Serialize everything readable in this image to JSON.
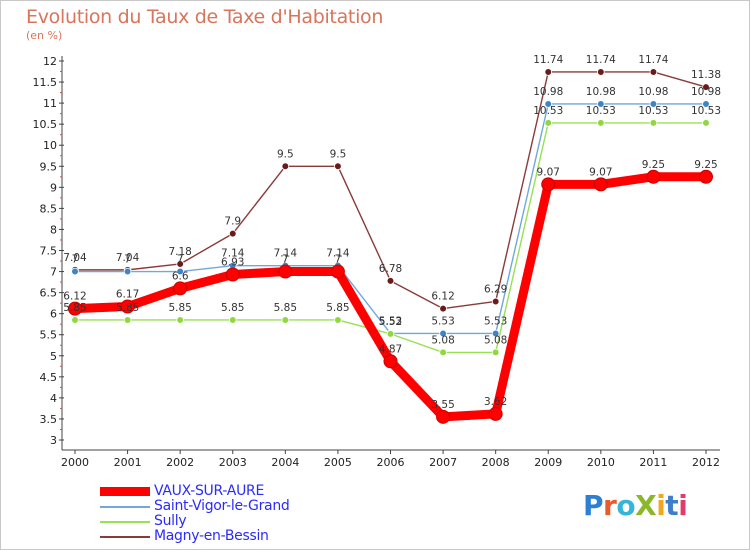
{
  "header": {
    "title": "Evolution du Taux de Taxe d'Habitation",
    "subtitle": "(en %)"
  },
  "logo": {
    "text": "ProXiti"
  },
  "chart_data": {
    "type": "line",
    "title": "Evolution du Taux de Taxe d'Habitation",
    "subtitle": "(en %)",
    "xlabel": "",
    "ylabel": "",
    "x": [
      "2000",
      "2001",
      "2002",
      "2003",
      "2004",
      "2005",
      "2006",
      "2007",
      "2008",
      "2009",
      "2010",
      "2011",
      "2012"
    ],
    "ylim": [
      3,
      12
    ],
    "yticks": [
      "3",
      "3.5",
      "4",
      "4.5",
      "5",
      "5.5",
      "6",
      "6.5",
      "7",
      "7.5",
      "8",
      "8.5",
      "9",
      "9.5",
      "10",
      "10.5",
      "11",
      "11.5",
      "12"
    ],
    "grid": false,
    "legend_position": "bottom-left",
    "series": [
      {
        "name": "VAUX-SUR-AURE",
        "color": "#ff0000",
        "values": [
          6.12,
          6.17,
          6.6,
          6.93,
          7.0,
          7.0,
          4.87,
          3.55,
          3.62,
          9.07,
          9.07,
          9.25,
          9.25
        ],
        "labels": [
          "6.12",
          "6.17",
          "6.6",
          "6.93",
          "7",
          "7",
          "4.87",
          "3.55",
          "3.62",
          "9.07",
          "9.07",
          "9.25",
          "9.25"
        ]
      },
      {
        "name": "Saint-Vigor-le-Grand",
        "color": "#6fa8dc",
        "values": [
          7.0,
          7.0,
          7.0,
          7.14,
          7.14,
          7.14,
          5.53,
          5.53,
          5.53,
          10.98,
          10.98,
          10.98,
          10.98
        ],
        "labels": [
          "7",
          "7",
          "7",
          "7.14",
          "7.14",
          "7.14",
          "5.53",
          "5.53",
          "5.53",
          "10.98",
          "10.98",
          "10.98",
          "10.98"
        ]
      },
      {
        "name": "Sully",
        "color": "#99e055",
        "values": [
          5.85,
          5.85,
          5.85,
          5.85,
          5.85,
          5.85,
          5.52,
          5.08,
          5.08,
          10.53,
          10.53,
          10.53,
          10.53
        ],
        "labels": [
          "5.85",
          "5.85",
          "5.85",
          "5.85",
          "5.85",
          "5.85",
          "5.52",
          "5.08",
          "5.08",
          "10.53",
          "10.53",
          "10.53",
          "10.53"
        ]
      },
      {
        "name": "Magny-en-Bessin",
        "color": "#8b3a3a",
        "values": [
          7.04,
          7.04,
          7.18,
          7.9,
          9.5,
          9.5,
          6.78,
          6.12,
          6.29,
          11.74,
          11.74,
          11.74,
          11.38
        ],
        "labels": [
          "7.04",
          "7.04",
          "7.18",
          "7.9",
          "9.5",
          "9.5",
          "6.78",
          "6.12",
          "6.29",
          "11.74",
          "11.74",
          "11.74",
          "11.38"
        ]
      }
    ]
  }
}
